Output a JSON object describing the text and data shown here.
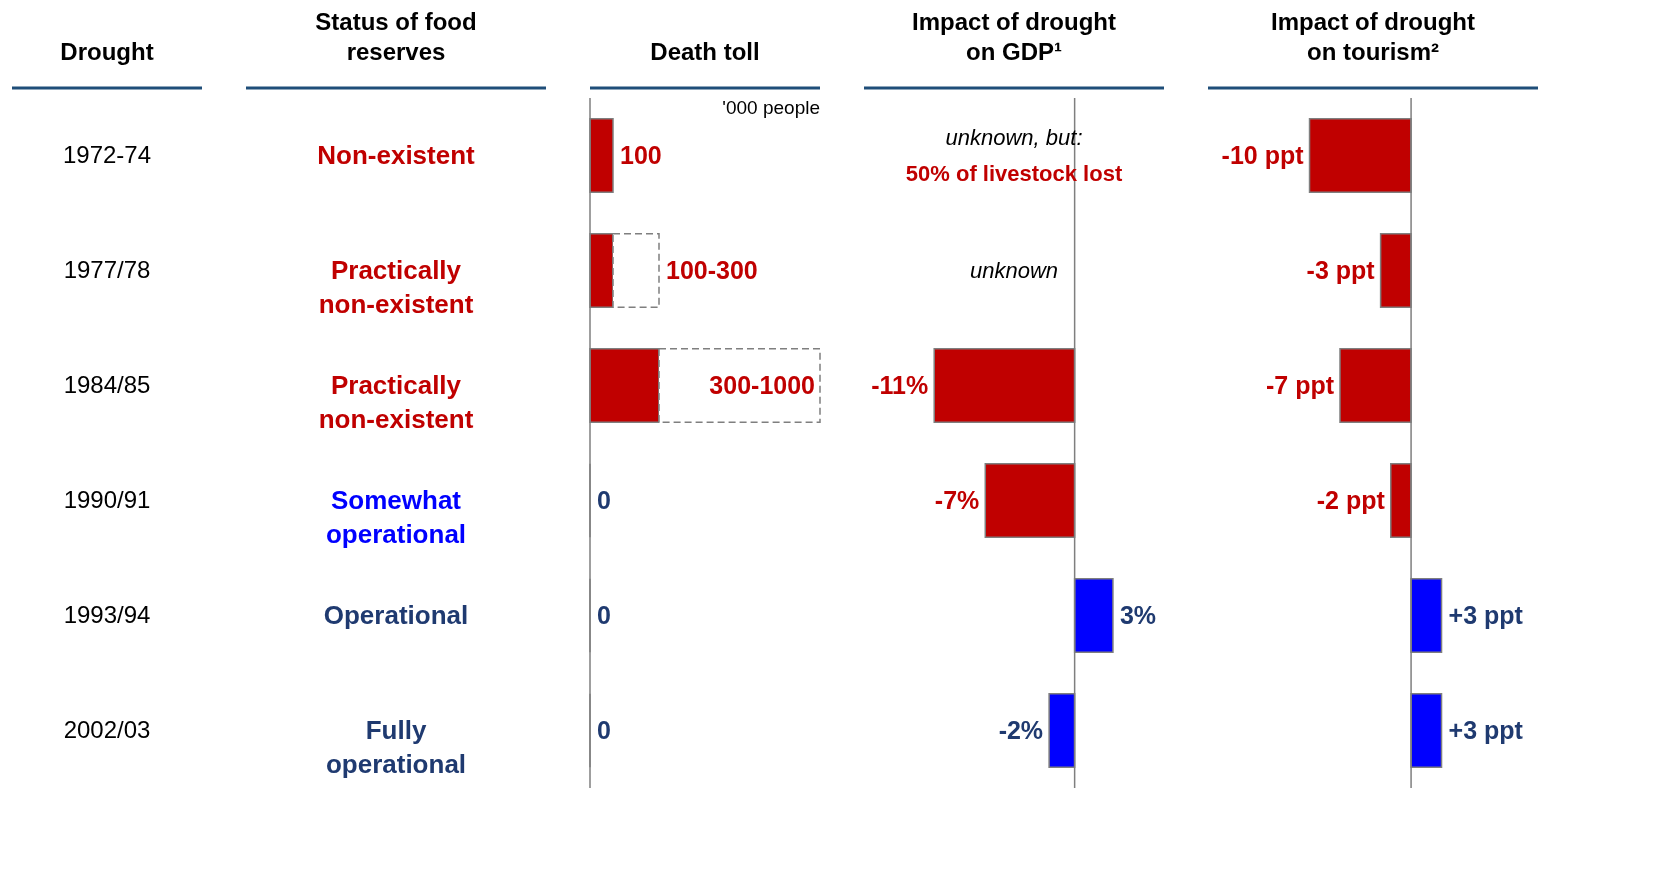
{
  "chart_data": [
    {
      "type": "other",
      "title": "Drought",
      "categories": [
        "1972-74",
        "1977/78",
        "1984/85",
        "1990/91",
        "1993/94",
        "2002/03"
      ]
    },
    {
      "type": "other",
      "title": "Status of food reserves",
      "annotations": [
        "Non-existent",
        "Practically non-existent",
        "Practically non-existent",
        "Somewhat operational",
        "Operational",
        "Fully operational"
      ],
      "colors": [
        "#c00000",
        "#c00000",
        "#c00000",
        "#0000ff",
        "#1f3a70",
        "#1f3a70"
      ]
    },
    {
      "type": "bar",
      "orientation": "horizontal",
      "stacked": true,
      "title": "Death toll",
      "categories": [
        "1972-74",
        "1977/78",
        "1984/85",
        "1990/91",
        "1993/94",
        "2002/03"
      ],
      "tick_labels": false,
      "xlim": [
        0,
        1000
      ],
      "annotations": [
        "'000 people"
      ],
      "series": [
        {
          "colors": [
            "#c00000",
            "#c00000",
            "#c00000",
            "#0000ff",
            "#0000ff",
            "#0000ff"
          ],
          "values": [
            100,
            100,
            300,
            0,
            0,
            0
          ],
          "value_labels": [
            "100",
            "100-300",
            "300-1000",
            "0",
            "0",
            "0"
          ]
        },
        {
          "color": "#ffffff",
          "line_style": "dashed",
          "values": [
            null,
            200,
            700,
            null,
            null,
            null
          ]
        }
      ]
    },
    {
      "type": "bar",
      "orientation": "horizontal",
      "title": "Impact of drought on GDP¹",
      "categories": [
        "1972-74",
        "1977/78",
        "1984/85",
        "1990/91",
        "1993/94",
        "2002/03"
      ],
      "tick_labels": false,
      "xlim": [
        -16.5,
        7
      ],
      "annotations": [
        "unknown, but:",
        "50% of livestock lost",
        "unknown"
      ],
      "series": [
        {
          "colors": [
            "#c00000",
            "#c00000",
            "#c00000",
            "#c00000",
            "#0000ff",
            "#0000ff"
          ],
          "values": [
            null,
            null,
            -11,
            -7,
            3,
            -2
          ],
          "value_labels": [
            null,
            null,
            "-11%",
            "-7%",
            "3%",
            "-2%"
          ]
        }
      ]
    },
    {
      "type": "bar",
      "orientation": "horizontal",
      "title": "Impact of drought on tourism²",
      "categories": [
        "1972-74",
        "1977/78",
        "1984/85",
        "1990/91",
        "1993/94",
        "2002/03"
      ],
      "tick_labels": false,
      "xlim": [
        -20,
        12.5
      ],
      "series": [
        {
          "colors": [
            "#c00000",
            "#c00000",
            "#c00000",
            "#c00000",
            "#0000ff",
            "#0000ff"
          ],
          "values": [
            -10,
            -3,
            -7,
            -2,
            3,
            3
          ],
          "value_labels": [
            "-10 ppt",
            "-3 ppt",
            "-7 ppt",
            "-2 ppt",
            "+3 ppt",
            "+3 ppt"
          ]
        }
      ]
    }
  ]
}
